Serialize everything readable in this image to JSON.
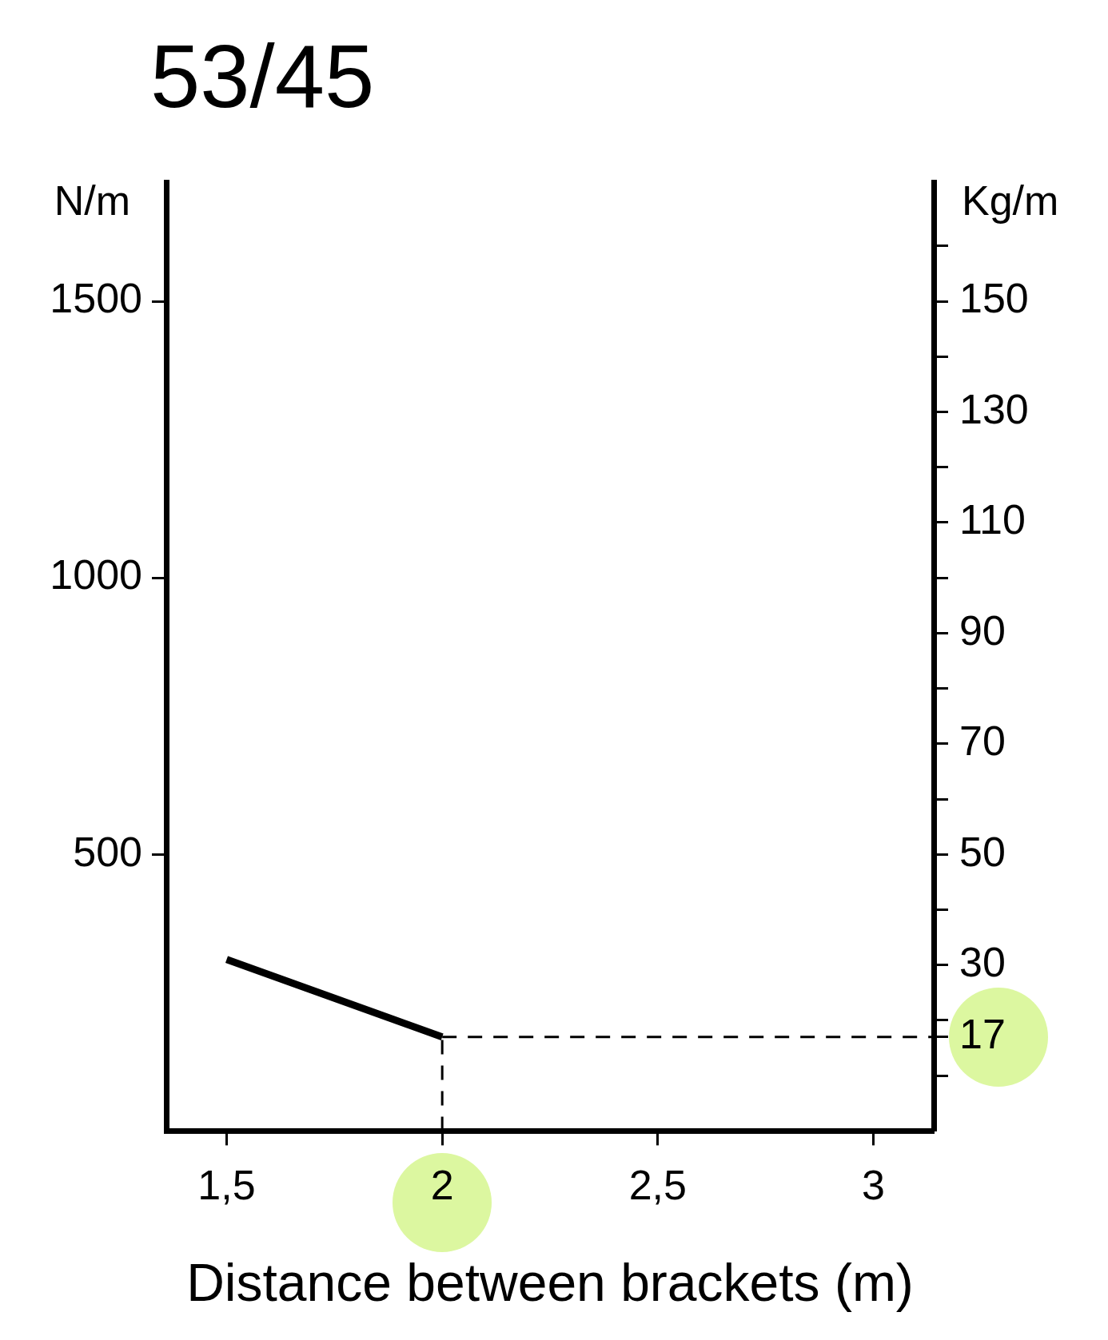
{
  "chart_data": {
    "type": "line",
    "title": "53/45",
    "xlabel": "Distance between brackets (m)",
    "ylabel": "N/m",
    "y2label": "Kg/m",
    "x": [
      1.5,
      2
    ],
    "series": [
      {
        "color": "#000000",
        "values": [
          310,
          170
        ]
      }
    ],
    "xlim": [
      1.36,
      3.14
    ],
    "xticks": [
      {
        "value": 1.5,
        "label": "1,5"
      },
      2,
      {
        "value": 2.5,
        "label": "2,5"
      },
      3
    ],
    "ylim": [
      0,
      1715
    ],
    "yticks": [
      500,
      1000,
      1500
    ],
    "y2lim": [
      0,
      171.5
    ],
    "y2ticks": [
      {
        "value": 10,
        "label": null
      },
      17,
      {
        "value": 20,
        "label": null
      },
      30,
      {
        "value": 40,
        "label": null
      },
      50,
      {
        "value": 60,
        "label": null
      },
      70,
      {
        "value": 80,
        "label": null
      },
      90,
      {
        "value": 100,
        "label": null
      },
      110,
      {
        "value": 120,
        "label": null
      },
      130,
      {
        "value": 140,
        "label": null
      },
      150,
      {
        "value": 160,
        "label": null
      }
    ],
    "ref_lines": [
      {
        "axis": "x",
        "value": 2,
        "line_style": "dashed",
        "color": "#000000"
      },
      {
        "axis": "y2",
        "value": 17,
        "line_style": "dashed",
        "color": "#000000"
      }
    ],
    "grid": false,
    "legend": false,
    "marker": "none",
    "line_style": "solid"
  }
}
